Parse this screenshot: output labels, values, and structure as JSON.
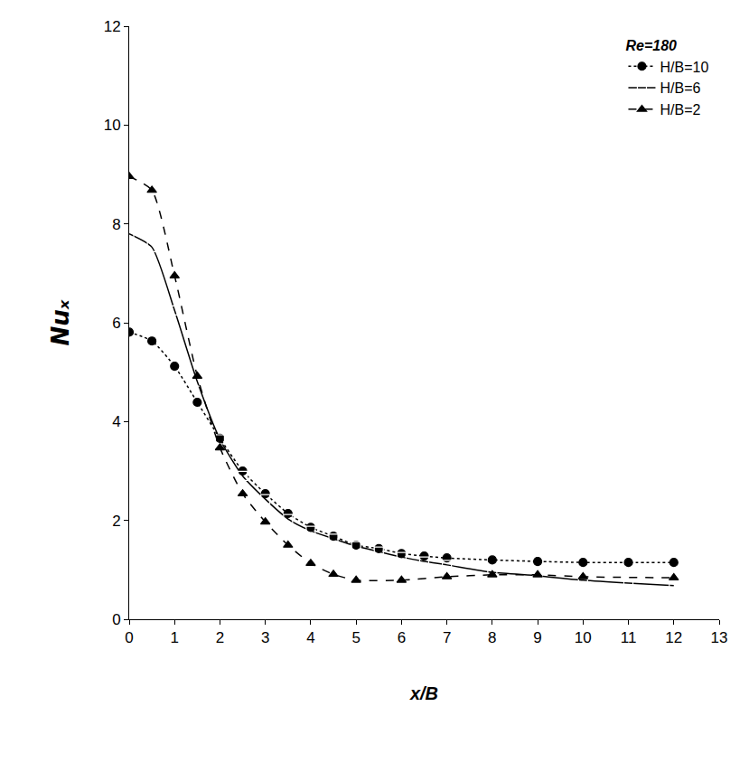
{
  "chart_data": {
    "type": "line",
    "x_label": "x/B",
    "y_label": "Nuₓ",
    "legend_title": "Re=180",
    "xlim": [
      0,
      13
    ],
    "xticks": [
      0,
      1,
      2,
      3,
      4,
      5,
      6,
      7,
      8,
      9,
      10,
      11,
      12,
      13
    ],
    "ylim": [
      0,
      12
    ],
    "yticks": [
      0,
      2,
      4,
      6,
      8,
      10,
      12
    ],
    "grid": false,
    "legend": "top-right",
    "series": [
      {
        "name": "H/B=10",
        "color": "#000000",
        "marker": "circle",
        "line_style": "dotted",
        "x": [
          0,
          0.5,
          1,
          1.5,
          2,
          2.5,
          3,
          3.5,
          4,
          4.5,
          5,
          5.5,
          6,
          6.5,
          7,
          8,
          9,
          10,
          11,
          12
        ],
        "values": [
          5.81,
          5.63,
          5.12,
          4.39,
          3.66,
          3.0,
          2.54,
          2.14,
          1.86,
          1.68,
          1.5,
          1.43,
          1.33,
          1.28,
          1.24,
          1.2,
          1.17,
          1.15,
          1.15,
          1.15
        ]
      },
      {
        "name": "H/B=6",
        "color": "#000000",
        "marker": "square-open",
        "line_style": "solid",
        "x": [
          0,
          0.5,
          1,
          1.5,
          2,
          2.5,
          3,
          3.5,
          4,
          4.5,
          5,
          5.5,
          6,
          6.5,
          7,
          8,
          9,
          10,
          11,
          12
        ],
        "values": [
          7.8,
          7.53,
          6.25,
          4.81,
          3.64,
          2.9,
          2.43,
          2.03,
          1.79,
          1.63,
          1.48,
          1.37,
          1.26,
          1.17,
          1.1,
          0.95,
          0.88,
          0.79,
          0.73,
          0.68
        ]
      },
      {
        "name": "H/B=2",
        "color": "#000000",
        "marker": "triangle-up",
        "line_style": "dashed",
        "x": [
          0,
          0.5,
          1,
          1.5,
          2,
          2.5,
          3,
          3.5,
          4,
          4.5,
          5,
          6,
          7,
          8,
          9,
          10,
          12
        ],
        "values": [
          8.96,
          8.68,
          6.95,
          4.92,
          3.47,
          2.54,
          1.97,
          1.5,
          1.13,
          0.91,
          0.79,
          0.79,
          0.86,
          0.9,
          0.9,
          0.86,
          0.84
        ]
      }
    ]
  }
}
